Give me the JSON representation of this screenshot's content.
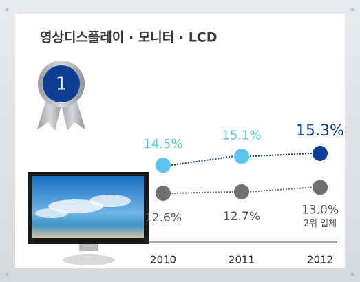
{
  "chart_data": {
    "type": "line",
    "title": "영상디스플레이 · 모니터 · LCD",
    "badge": "1",
    "categories": [
      "2010",
      "2011",
      "2012"
    ],
    "series": [
      {
        "colors": [
          "#5cc4ef",
          "#5cc4ef",
          "#0c3f95"
        ],
        "line_color": "#0c3f95",
        "values": [
          14.5,
          15.1,
          15.3
        ],
        "value_labels": [
          "14.5%",
          "15.1%",
          "15.3%"
        ]
      },
      {
        "colors": [
          "#707174",
          "#707174",
          "#707174"
        ],
        "line_color": "#707174",
        "values": [
          12.6,
          12.7,
          13.0
        ],
        "value_labels": [
          "12.6%",
          "12.7%",
          "13.0%"
        ]
      }
    ],
    "annotation": "2위 업체"
  }
}
